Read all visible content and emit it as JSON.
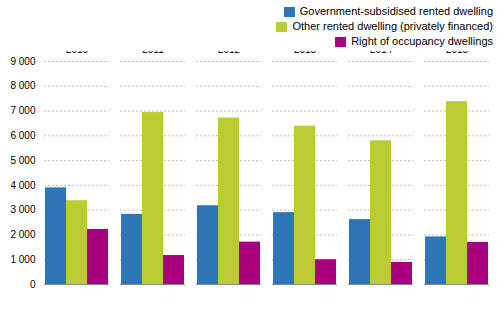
{
  "chart_data": {
    "type": "bar",
    "categories": [
      "2010",
      "2011",
      "2012",
      "2013",
      "2014",
      "2015"
    ],
    "series": [
      {
        "name": "Government-subsidised rented dwelling",
        "color": "#2E75B6",
        "values": [
          3900,
          2830,
          3180,
          2900,
          2620,
          1920
        ]
      },
      {
        "name": "Other rented dwelling (privately financed)",
        "color": "#BBCC33",
        "values": [
          3380,
          6940,
          6720,
          6390,
          5800,
          7380
        ]
      },
      {
        "name": "Right of occupancy dwellings",
        "color": "#AA007F",
        "values": [
          2220,
          1170,
          1710,
          1000,
          890,
          1700
        ]
      }
    ],
    "ylim": [
      0,
      9000
    ],
    "yticks": [
      0,
      {
        "value": 1000,
        "label": "1 000"
      },
      {
        "value": 2000,
        "label": "2 000"
      },
      {
        "value": 3000,
        "label": "3 000"
      },
      {
        "value": 4000,
        "label": "4 000"
      },
      {
        "value": 5000,
        "label": "5 000"
      },
      {
        "value": 6000,
        "label": "6 000"
      },
      {
        "value": 7000,
        "label": "7 000"
      },
      {
        "value": 8000,
        "label": "8 000"
      },
      {
        "value": 9000,
        "label": "9 000"
      }
    ],
    "grid": true,
    "legend": "upper right"
  }
}
